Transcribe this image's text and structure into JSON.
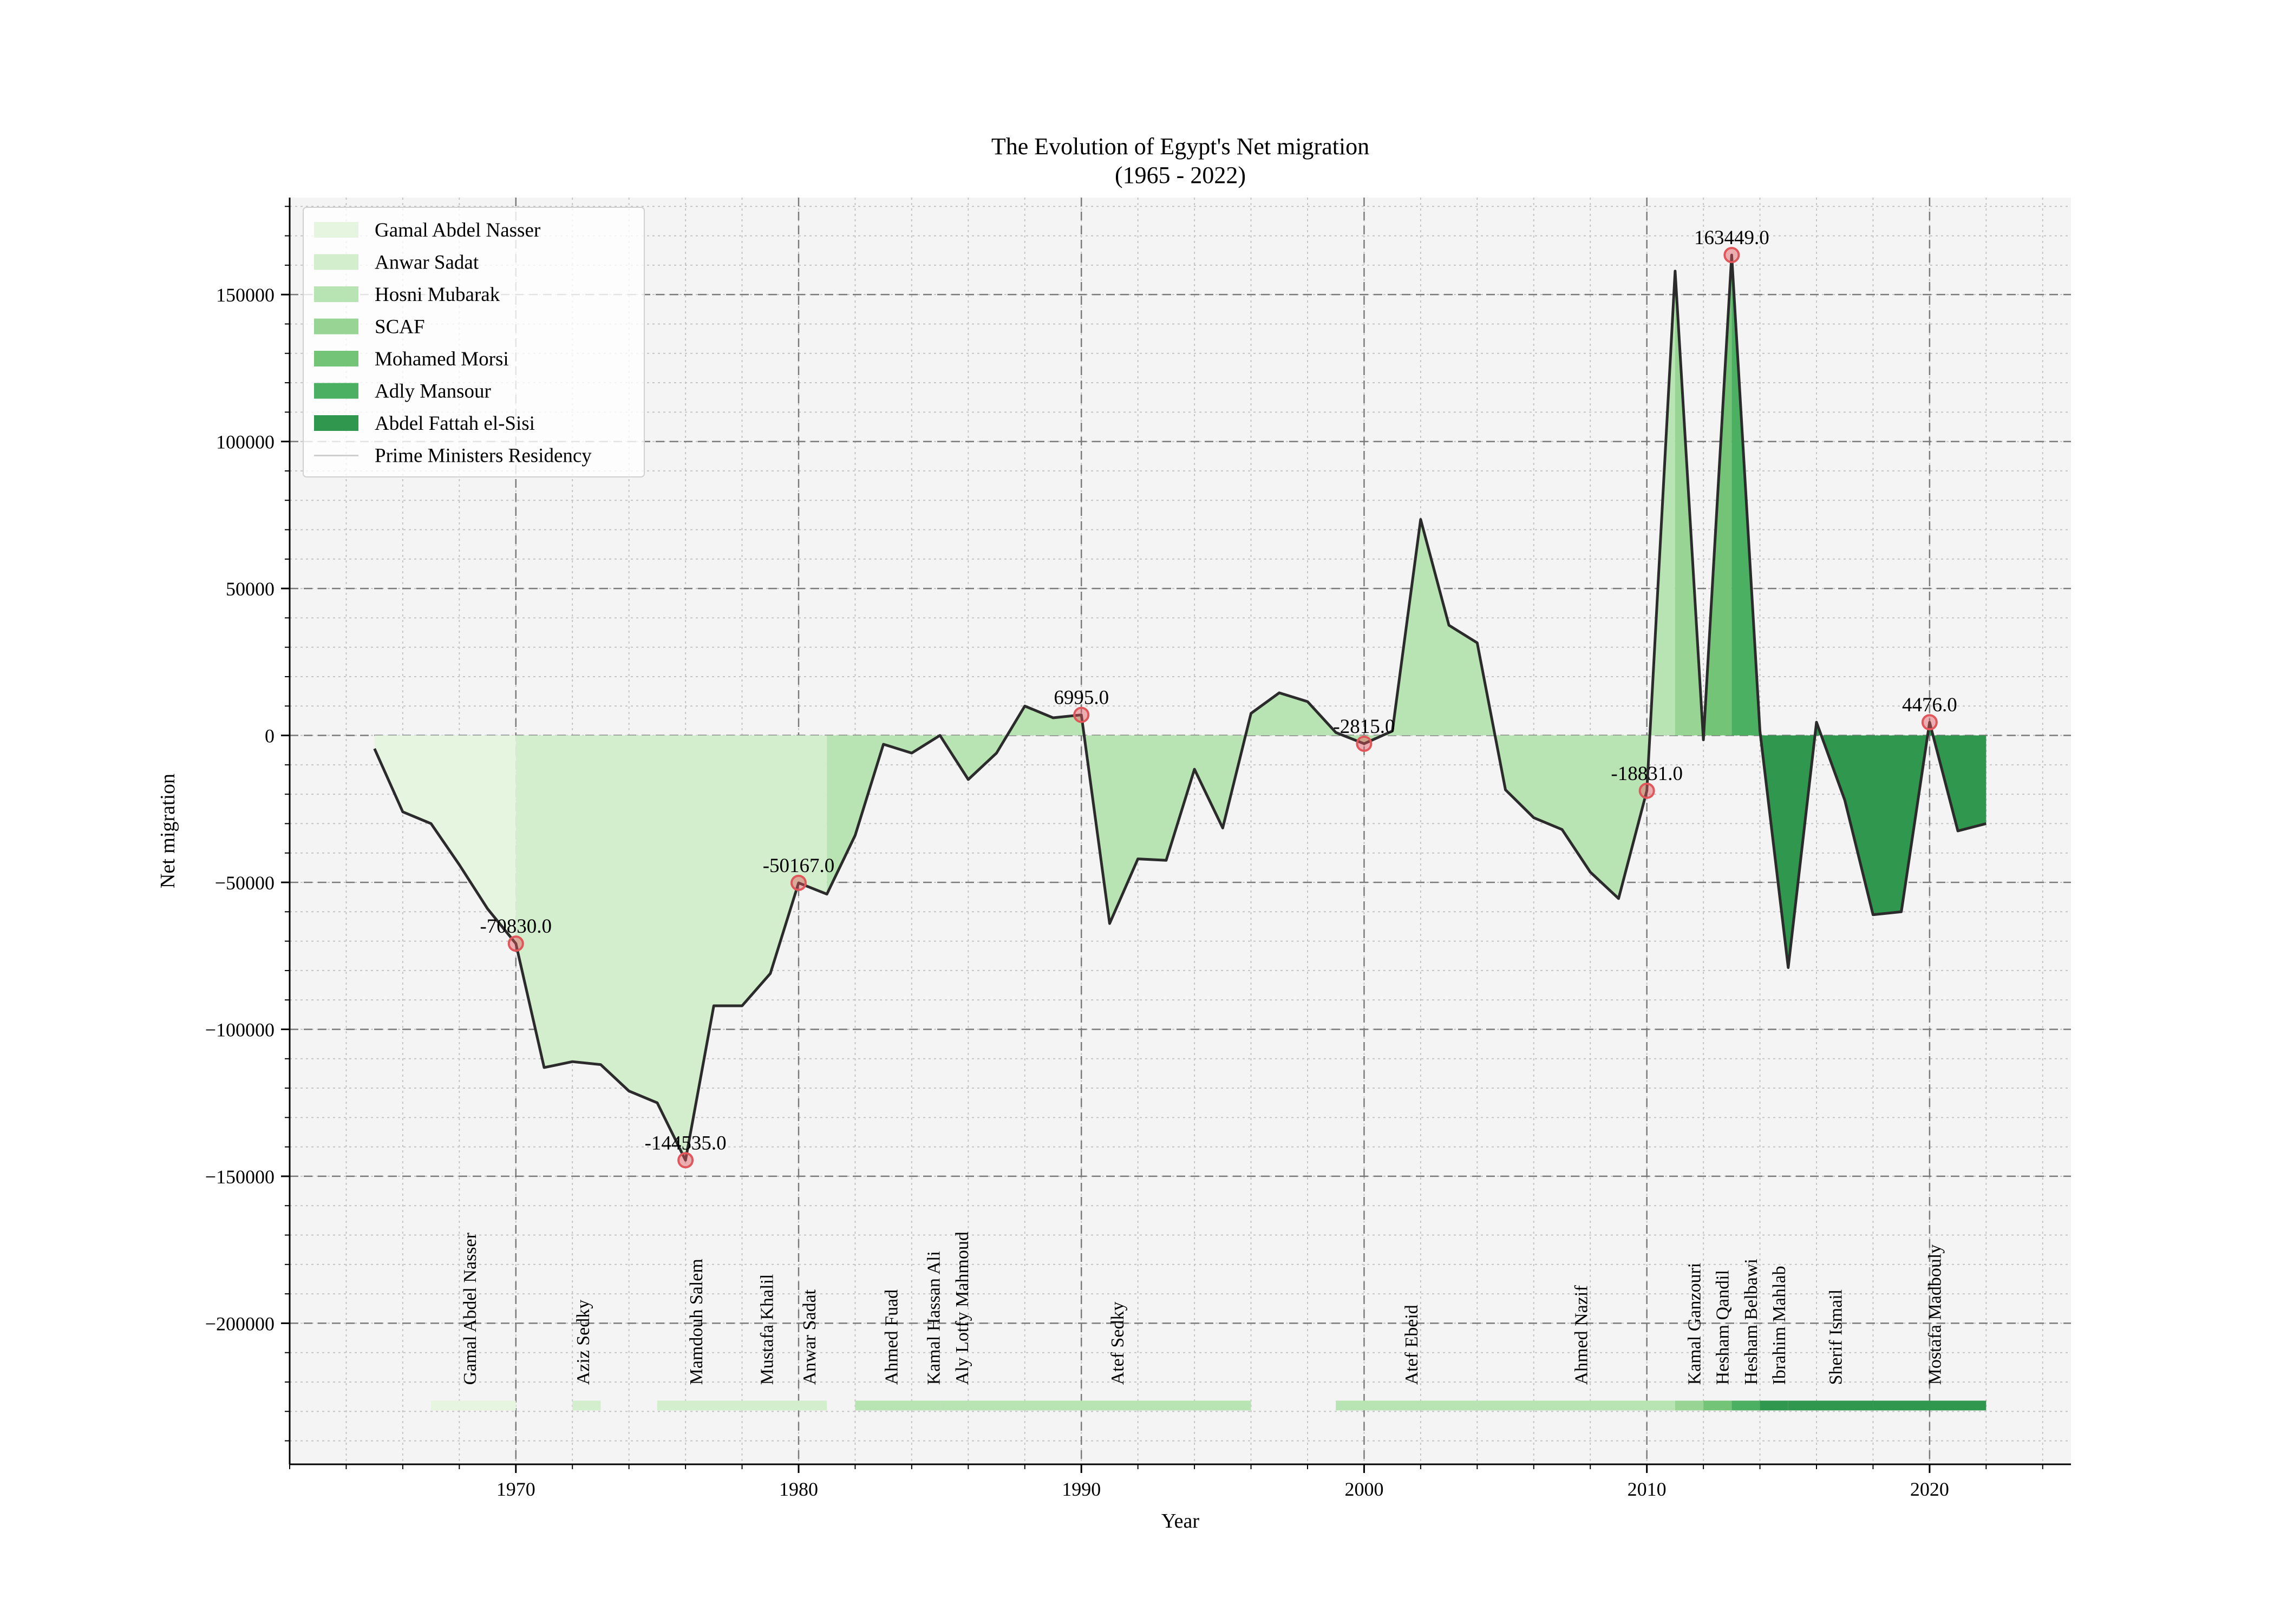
{
  "chart_data": {
    "type": "area",
    "title": "The Evolution of Egypt's Net migration",
    "subtitle": "(1965 - 2022)",
    "xlabel": "Year",
    "ylabel": "Net migration",
    "xlim": [
      1962,
      2025
    ],
    "ylim": [
      -248000,
      183000
    ],
    "x_ticks": [
      1970,
      1980,
      1990,
      2000,
      2010,
      2020
    ],
    "y_ticks": [
      -200000,
      -150000,
      -100000,
      -50000,
      0,
      50000,
      100000,
      150000
    ],
    "grid": true,
    "legend_position": "upper left",
    "x": [
      1965,
      1966,
      1967,
      1968,
      1969,
      1970,
      1971,
      1972,
      1973,
      1974,
      1975,
      1976,
      1977,
      1978,
      1979,
      1980,
      1981,
      1982,
      1983,
      1984,
      1985,
      1986,
      1987,
      1988,
      1989,
      1990,
      1991,
      1992,
      1993,
      1994,
      1995,
      1996,
      1997,
      1998,
      1999,
      2000,
      2001,
      2002,
      2003,
      2004,
      2005,
      2006,
      2007,
      2008,
      2009,
      2010,
      2011,
      2012,
      2013,
      2014,
      2015,
      2016,
      2017,
      2018,
      2019,
      2020,
      2021,
      2022
    ],
    "values": [
      -4500,
      -26000,
      -30000,
      -44000,
      -59000,
      -70830,
      -113000,
      -111000,
      -112000,
      -121000,
      -125000,
      -144535,
      -92000,
      -92000,
      -81000,
      -50167,
      -54000,
      -34000,
      -3000,
      -6000,
      0,
      -15000,
      -6000,
      10000,
      6000,
      6995,
      -64000,
      -42000,
      -42500,
      -11500,
      -31500,
      7500,
      14500,
      11500,
      1000,
      -2815,
      1500,
      73500,
      37500,
      31500,
      -18500,
      -28000,
      -32000,
      -46500,
      -55500,
      -18831,
      158000,
      -1500,
      163449,
      1500,
      -79000,
      4500,
      -22000,
      -61000,
      -60000,
      4476,
      -32500,
      -30000
    ],
    "series": [
      {
        "name": "Gamal Abdel Nasser",
        "start": 1965,
        "end": 1970,
        "color": "#e5f5e0"
      },
      {
        "name": "Anwar Sadat",
        "start": 1970,
        "end": 1981,
        "color": "#d3eecd"
      },
      {
        "name": "Hosni Mubarak",
        "start": 1981,
        "end": 2011,
        "color": "#b8e3b2"
      },
      {
        "name": "SCAF",
        "start": 2011,
        "end": 2012,
        "color": "#98d594"
      },
      {
        "name": "Mohamed Morsi",
        "start": 2012,
        "end": 2013,
        "color": "#73c476"
      },
      {
        "name": "Adly Mansour",
        "start": 2013,
        "end": 2014,
        "color": "#4bb062"
      },
      {
        "name": "Abdel Fattah el-Sisi",
        "start": 2014,
        "end": 2022,
        "color": "#2f974e"
      }
    ],
    "prime_ministers_legend": "Prime Ministers Residency",
    "prime_ministers": [
      {
        "name": "Gamal Abdel Nasser",
        "start": 1967,
        "end": 1970,
        "color": "#e5f5e0"
      },
      {
        "name": "Aziz Sedky",
        "start": 1972,
        "end": 1973,
        "color": "#d3eecd"
      },
      {
        "name": "Mamdouh Salem",
        "start": 1975,
        "end": 1978,
        "color": "#d3eecd"
      },
      {
        "name": "Mustafa Khalil",
        "start": 1978,
        "end": 1980,
        "color": "#d3eecd"
      },
      {
        "name": "Anwar Sadat",
        "start": 1980,
        "end": 1981,
        "color": "#d3eecd"
      },
      {
        "name": "Ahmed Fuad",
        "start": 1982,
        "end": 1984,
        "color": "#b8e3b2"
      },
      {
        "name": "Kamal Hassan Ali",
        "start": 1984,
        "end": 1985,
        "color": "#b8e3b2"
      },
      {
        "name": "Aly Lotfy Mahmoud",
        "start": 1985,
        "end": 1986,
        "color": "#b8e3b2"
      },
      {
        "name": "Atef Sedky",
        "start": 1986,
        "end": 1996,
        "color": "#b8e3b2"
      },
      {
        "name": "Atef Ebeid",
        "start": 1999,
        "end": 2004,
        "color": "#b8e3b2"
      },
      {
        "name": "Ahmed Nazif",
        "start": 2004,
        "end": 2011,
        "color": "#b8e3b2"
      },
      {
        "name": "Kamal Ganzouri",
        "start": 2011,
        "end": 2012,
        "color": "#98d594"
      },
      {
        "name": "Hesham Qandil",
        "start": 2012,
        "end": 2013,
        "color": "#73c476"
      },
      {
        "name": "Hesham Belbawi",
        "start": 2013,
        "end": 2014,
        "color": "#4bb062"
      },
      {
        "name": "Ibrahim Mahlab",
        "start": 2014,
        "end": 2015,
        "color": "#2f974e"
      },
      {
        "name": "Sherif Ismail",
        "start": 2015,
        "end": 2018,
        "color": "#2f974e"
      },
      {
        "name": "Mostafa Madbouly",
        "start": 2018,
        "end": 2022,
        "color": "#2f974e"
      }
    ],
    "pm_label_years": [
      1968.4,
      1972.4,
      1976.4,
      1978.9,
      1980.4,
      1983.3,
      1984.8,
      1985.8,
      1991.3,
      2001.7,
      2007.7,
      2011.7,
      2012.7,
      2013.7,
      2014.7,
      2016.7,
      2020.2
    ],
    "annotations": [
      {
        "x": 1970,
        "y": -70830,
        "label": "-70830.0"
      },
      {
        "x": 1976,
        "y": -144535,
        "label": "-144535.0"
      },
      {
        "x": 1980,
        "y": -50167,
        "label": "-50167.0"
      },
      {
        "x": 1990,
        "y": 6995,
        "label": "6995.0"
      },
      {
        "x": 2000,
        "y": -2815,
        "label": "-2815.0"
      },
      {
        "x": 2010,
        "y": -18831,
        "label": "-18831.0"
      },
      {
        "x": 2013,
        "y": 163449,
        "label": "163449.0"
      },
      {
        "x": 2020,
        "y": 4476,
        "label": "4476.0"
      }
    ],
    "colors": {
      "plot_background": "#f4f4f4",
      "line": "#2b2b2b",
      "annotation_marker": "#e0565b"
    }
  }
}
